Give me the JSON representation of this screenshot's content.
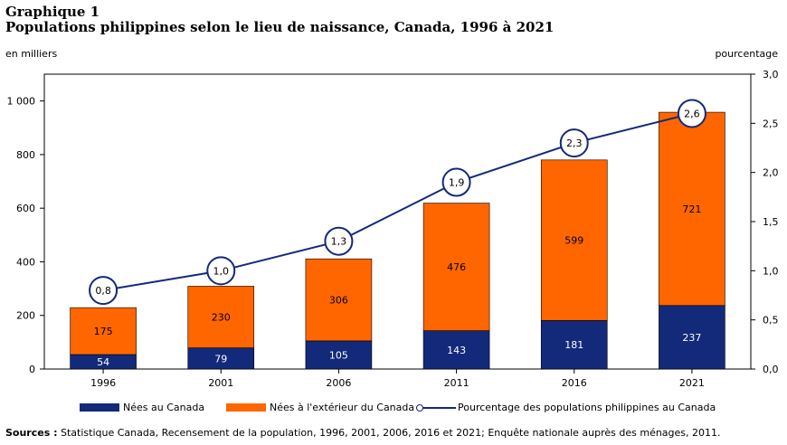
{
  "header": {
    "label": "Graphique 1",
    "title": "Populations philippines selon le lieu de naissance, Canada, 1996 à 2021"
  },
  "axes": {
    "left_unit": "en milliers",
    "right_unit": "pourcentage"
  },
  "legend": {
    "born_in_canada": "Nées au Canada",
    "born_outside": "Nées à l'extérieur du Canada",
    "percentage": "Pourcentage des populations philippines au Canada"
  },
  "sources": {
    "label": "Sources :",
    "text": "Statistique Canada, Recensement de la population, 1996, 2001, 2006, 2016 et 2021; Enquête nationale auprès des ménages, 2011."
  },
  "colors": {
    "born_in_canada": "#13297a",
    "born_outside": "#ff6600",
    "line": "#13297a"
  },
  "chart_data": {
    "type": "bar",
    "stacked": true,
    "categories": [
      "1996",
      "2001",
      "2006",
      "2011",
      "2016",
      "2021"
    ],
    "series": [
      {
        "name": "Nées au Canada",
        "values": [
          54,
          79,
          105,
          143,
          181,
          237
        ]
      },
      {
        "name": "Nées à l'extérieur du Canada",
        "values": [
          175,
          230,
          306,
          476,
          599,
          721
        ]
      }
    ],
    "line_series": {
      "name": "Pourcentage des populations philippines au Canada",
      "values": [
        0.8,
        1.0,
        1.3,
        1.9,
        2.3,
        2.6
      ],
      "labels": [
        "0,8",
        "1,0",
        "1,3",
        "1,9",
        "2,3",
        "2,6"
      ]
    },
    "ylabel": "en milliers",
    "y2label": "pourcentage",
    "ylim": [
      0,
      1100
    ],
    "y2lim": [
      0,
      3.0
    ],
    "yticks": [
      0,
      200,
      400,
      600,
      800,
      1000
    ],
    "yticklabels": [
      "0",
      "200",
      "400",
      "600",
      "800",
      "1 000"
    ],
    "y2ticks": [
      0,
      0.5,
      1.0,
      1.5,
      2.0,
      2.5,
      3.0
    ],
    "y2ticklabels": [
      "0,0",
      "0,5",
      "1,0",
      "1,5",
      "2,0",
      "2,5",
      "3,0"
    ],
    "grid": false,
    "legend_position": "bottom"
  }
}
